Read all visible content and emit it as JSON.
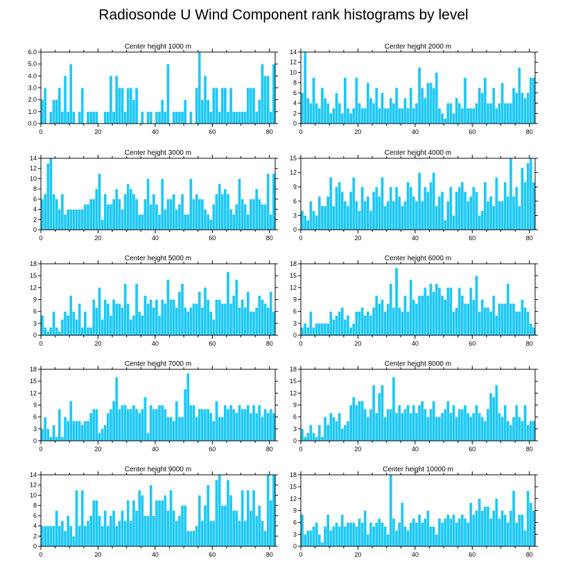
{
  "figure": {
    "title": "Radiosonde U Wind Component rank histograms by level",
    "bar_color": "#1ec8f5"
  },
  "chart_data": [
    {
      "type": "bar",
      "title": "Center height 1000 m",
      "x_start": 0,
      "xlim": [
        0,
        82
      ],
      "xticks": [
        0,
        20,
        40,
        60,
        80
      ],
      "ylim": [
        0,
        6
      ],
      "yticks": [
        0,
        1,
        2,
        3,
        4,
        5,
        6
      ],
      "ytick_labels": [
        "0.0",
        "1.0",
        "2.0",
        "3.0",
        "4.0",
        "5.0",
        "6.0"
      ],
      "values": [
        2,
        3,
        0,
        1,
        2,
        2,
        3,
        1,
        4,
        1,
        5,
        1,
        0,
        1,
        3,
        0,
        1,
        1,
        1,
        1,
        0,
        0,
        1,
        1,
        4,
        1,
        4,
        3,
        3,
        1,
        3,
        3,
        2,
        3,
        0,
        1,
        0,
        1,
        1,
        0,
        1,
        1,
        2,
        1,
        5,
        0,
        1,
        1,
        1,
        1,
        2,
        0,
        1,
        0,
        3,
        6,
        2,
        4,
        2,
        1,
        3,
        3,
        1,
        3,
        3,
        1,
        3,
        1,
        1,
        1,
        1,
        1,
        3,
        3,
        3,
        1,
        2,
        5,
        4,
        4,
        1,
        5
      ]
    },
    {
      "type": "bar",
      "title": "Center height 2000 m",
      "x_start": 0,
      "xlim": [
        0,
        82
      ],
      "xticks": [
        0,
        20,
        40,
        60,
        80
      ],
      "ylim": [
        0,
        14
      ],
      "yticks": [
        0,
        2,
        4,
        6,
        8,
        10,
        12,
        14
      ],
      "values": [
        6,
        14,
        5,
        4,
        9,
        4,
        3,
        7,
        5,
        4,
        2,
        3,
        6,
        4,
        2,
        9,
        3,
        2,
        3,
        9,
        4,
        3,
        3,
        8,
        5,
        4,
        7,
        3,
        6,
        3,
        3,
        5,
        4,
        7,
        3,
        3,
        5,
        3,
        7,
        3,
        4,
        11,
        7,
        5,
        8,
        8,
        7,
        10,
        3,
        2,
        1,
        4,
        4,
        2,
        5,
        4,
        3,
        9,
        3,
        3,
        3,
        4,
        7,
        6,
        9,
        4,
        4,
        7,
        3,
        4,
        8,
        4,
        4,
        4,
        7,
        6,
        11,
        6,
        5,
        6,
        9,
        9
      ]
    },
    {
      "type": "bar",
      "title": "Center height 3000 m",
      "x_start": 0,
      "xlim": [
        0,
        82
      ],
      "xticks": [
        0,
        20,
        40,
        60,
        80
      ],
      "ylim": [
        0,
        14
      ],
      "yticks": [
        0,
        2,
        4,
        6,
        8,
        10,
        12,
        14
      ],
      "values": [
        6,
        7,
        13,
        14,
        7,
        6,
        4,
        7,
        3,
        4,
        4,
        4,
        4,
        4,
        4,
        5,
        5,
        6,
        6,
        8,
        11,
        2,
        7,
        5,
        5,
        6,
        8,
        6,
        4,
        7,
        9,
        8,
        7,
        6,
        3,
        3,
        6,
        10,
        5,
        7,
        5,
        3,
        10,
        4,
        6,
        6,
        7,
        4,
        5,
        7,
        3,
        3,
        10,
        6,
        7,
        6,
        6,
        4,
        3,
        2,
        5,
        7,
        9,
        7,
        8,
        7,
        4,
        3,
        5,
        10,
        6,
        5,
        3,
        6,
        6,
        8,
        6,
        5,
        5,
        11,
        3,
        11
      ]
    },
    {
      "type": "bar",
      "title": "Center height 4000 m",
      "x_start": 0,
      "xlim": [
        0,
        82
      ],
      "xticks": [
        0,
        20,
        40,
        60,
        80
      ],
      "ylim": [
        0,
        15
      ],
      "yticks": [
        0,
        3,
        6,
        9,
        12,
        15
      ],
      "values": [
        4,
        3,
        2,
        6,
        4,
        3,
        7,
        5,
        5,
        7,
        11,
        5,
        9,
        10,
        8,
        6,
        5,
        8,
        11,
        6,
        4,
        9,
        6,
        7,
        4,
        8,
        9,
        7,
        11,
        5,
        6,
        9,
        6,
        9,
        7,
        5,
        6,
        10,
        9,
        7,
        6,
        12,
        6,
        9,
        8,
        10,
        12,
        5,
        7,
        8,
        2,
        6,
        9,
        3,
        8,
        9,
        10,
        8,
        6,
        7,
        9,
        8,
        3,
        4,
        10,
        6,
        7,
        5,
        11,
        6,
        6,
        10,
        7,
        15,
        7,
        9,
        5,
        13,
        10,
        14,
        15,
        10
      ]
    },
    {
      "type": "bar",
      "title": "Center height 5000 m",
      "x_start": 0,
      "xlim": [
        0,
        82
      ],
      "xticks": [
        0,
        20,
        40,
        60,
        80
      ],
      "ylim": [
        0,
        18
      ],
      "yticks": [
        0,
        3,
        6,
        9,
        12,
        15,
        18
      ],
      "values": [
        5,
        2,
        1,
        2,
        6,
        2,
        1,
        4,
        6,
        5,
        10,
        6,
        4,
        8,
        2,
        6,
        2,
        2,
        9,
        7,
        12,
        4,
        9,
        8,
        5,
        9,
        8,
        8,
        7,
        13,
        8,
        4,
        5,
        13,
        6,
        5,
        10,
        8,
        9,
        7,
        9,
        5,
        9,
        8,
        14,
        9,
        9,
        7,
        11,
        13,
        7,
        6,
        7,
        8,
        8,
        11,
        7,
        12,
        9,
        6,
        4,
        9,
        9,
        8,
        8,
        16,
        8,
        10,
        14,
        7,
        9,
        7,
        11,
        6,
        6,
        7,
        10,
        9,
        8,
        7,
        11,
        6
      ]
    },
    {
      "type": "bar",
      "title": "Center height 6000 m",
      "x_start": 0,
      "xlim": [
        0,
        82
      ],
      "xticks": [
        0,
        20,
        40,
        60,
        80
      ],
      "ylim": [
        0,
        18
      ],
      "yticks": [
        0,
        3,
        6,
        9,
        12,
        15,
        18
      ],
      "values": [
        2,
        3,
        2,
        6,
        2,
        3,
        3,
        3,
        3,
        3,
        6,
        4,
        5,
        6,
        7,
        4,
        5,
        2,
        3,
        6,
        6,
        7,
        5,
        6,
        5,
        7,
        10,
        8,
        9,
        6,
        8,
        13,
        7,
        17,
        7,
        6,
        10,
        6,
        14,
        9,
        8,
        10,
        10,
        12,
        10,
        13,
        11,
        13,
        12,
        10,
        9,
        12,
        12,
        6,
        7,
        12,
        10,
        8,
        8,
        12,
        9,
        15,
        6,
        9,
        7,
        7,
        6,
        10,
        5,
        8,
        8,
        8,
        13,
        8,
        8,
        6,
        6,
        9,
        7,
        6,
        3,
        2
      ]
    },
    {
      "type": "bar",
      "title": "Center height 7000 m",
      "x_start": 0,
      "xlim": [
        0,
        82
      ],
      "xticks": [
        0,
        20,
        40,
        60,
        80
      ],
      "ylim": [
        0,
        18
      ],
      "yticks": [
        0,
        3,
        6,
        9,
        12,
        15,
        18
      ],
      "values": [
        3,
        6,
        3,
        1,
        4,
        1,
        8,
        1,
        6,
        5,
        10,
        5,
        5,
        5,
        4,
        5,
        5,
        7,
        8,
        8,
        2,
        3,
        4,
        7,
        8,
        10,
        16,
        8,
        9,
        9,
        8,
        8,
        9,
        8,
        7,
        8,
        11,
        2,
        9,
        8,
        8,
        9,
        9,
        8,
        6,
        6,
        5,
        10,
        6,
        6,
        13,
        17,
        9,
        9,
        6,
        8,
        8,
        8,
        8,
        7,
        5,
        10,
        6,
        6,
        9,
        8,
        9,
        8,
        7,
        9,
        8,
        8,
        9,
        7,
        9,
        7,
        9,
        6,
        8,
        7,
        8,
        7
      ]
    },
    {
      "type": "bar",
      "title": "Center height 8000 m",
      "x_start": 0,
      "xlim": [
        0,
        82
      ],
      "xticks": [
        0,
        20,
        40,
        60,
        80
      ],
      "ylim": [
        0,
        18
      ],
      "yticks": [
        0,
        3,
        6,
        9,
        12,
        15,
        18
      ],
      "values": [
        3,
        1,
        2,
        4,
        2,
        1,
        4,
        1,
        6,
        4,
        7,
        6,
        5,
        7,
        3,
        4,
        5,
        9,
        11,
        9,
        10,
        10,
        8,
        6,
        8,
        14,
        7,
        12,
        14,
        6,
        8,
        8,
        16,
        7,
        9,
        7,
        8,
        9,
        7,
        9,
        7,
        9,
        10,
        8,
        6,
        8,
        10,
        6,
        6,
        7,
        8,
        10,
        7,
        9,
        6,
        8,
        8,
        9,
        7,
        6,
        7,
        9,
        7,
        6,
        5,
        8,
        12,
        11,
        14,
        7,
        6,
        9,
        5,
        4,
        6,
        9,
        6,
        5,
        9,
        4,
        5,
        5
      ]
    },
    {
      "type": "bar",
      "title": "Center height 9000 m",
      "x_start": 0,
      "xlim": [
        0,
        82
      ],
      "xticks": [
        0,
        20,
        40,
        60,
        80
      ],
      "ylim": [
        0,
        14
      ],
      "yticks": [
        0,
        2,
        4,
        6,
        8,
        10,
        12,
        14
      ],
      "values": [
        4,
        4,
        4,
        4,
        4,
        7,
        4,
        5,
        3,
        6,
        4,
        2,
        11,
        4,
        11,
        4,
        5,
        6,
        9,
        9,
        6,
        4,
        7,
        4,
        6,
        7,
        4,
        5,
        7,
        5,
        9,
        5,
        9,
        7,
        11,
        10,
        6,
        6,
        12,
        6,
        9,
        9,
        9,
        10,
        7,
        11,
        7,
        5,
        6,
        8,
        8,
        3,
        3,
        3,
        4,
        10,
        5,
        8,
        12,
        5,
        5,
        13,
        14,
        8,
        8,
        13,
        10,
        7,
        7,
        5,
        11,
        5,
        11,
        7,
        11,
        6,
        8,
        5,
        3,
        14,
        9,
        14
      ]
    },
    {
      "type": "bar",
      "title": "Center height 10000 m",
      "x_start": 0,
      "xlim": [
        0,
        82
      ],
      "xticks": [
        0,
        20,
        40,
        60,
        80
      ],
      "ylim": [
        0,
        18
      ],
      "yticks": [
        0,
        3,
        6,
        9,
        12,
        15,
        18
      ],
      "values": [
        8,
        3,
        4,
        4,
        5,
        6,
        3,
        1,
        5,
        8,
        4,
        5,
        6,
        5,
        8,
        5,
        6,
        6,
        6,
        5,
        7,
        6,
        9,
        3,
        6,
        5,
        6,
        7,
        6,
        5,
        3,
        18,
        7,
        4,
        6,
        11,
        5,
        4,
        6,
        7,
        6,
        8,
        6,
        7,
        9,
        5,
        5,
        3,
        7,
        6,
        7,
        8,
        7,
        8,
        6,
        7,
        8,
        7,
        6,
        11,
        8,
        9,
        12,
        9,
        10,
        10,
        7,
        9,
        12,
        7,
        9,
        8,
        6,
        9,
        14,
        6,
        8,
        8,
        4,
        14,
        11,
        9
      ]
    }
  ]
}
